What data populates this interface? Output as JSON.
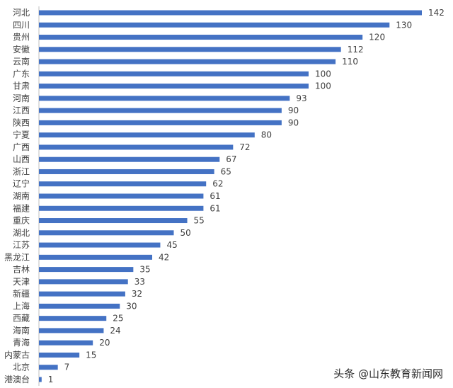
{
  "chart_data": {
    "type": "bar",
    "orientation": "horizontal",
    "categories": [
      "河北",
      "四川",
      "贵州",
      "安徽",
      "云南",
      "广东",
      "甘肃",
      "河南",
      "江西",
      "陕西",
      "宁夏",
      "广西",
      "山西",
      "浙江",
      "辽宁",
      "湖南",
      "福建",
      "重庆",
      "湖北",
      "江苏",
      "黑龙江",
      "吉林",
      "天津",
      "新疆",
      "上海",
      "西藏",
      "海南",
      "青海",
      "内蒙古",
      "北京",
      "港澳台"
    ],
    "values": [
      142,
      130,
      120,
      112,
      110,
      100,
      100,
      93,
      90,
      90,
      80,
      72,
      67,
      65,
      62,
      61,
      61,
      55,
      50,
      45,
      42,
      35,
      33,
      32,
      30,
      25,
      24,
      20,
      15,
      7,
      1
    ],
    "xlim": [
      0,
      142
    ],
    "grid": false,
    "legend": "none",
    "bar_color": "#4472c4"
  },
  "watermark": "头条 @山东教育新闻网"
}
